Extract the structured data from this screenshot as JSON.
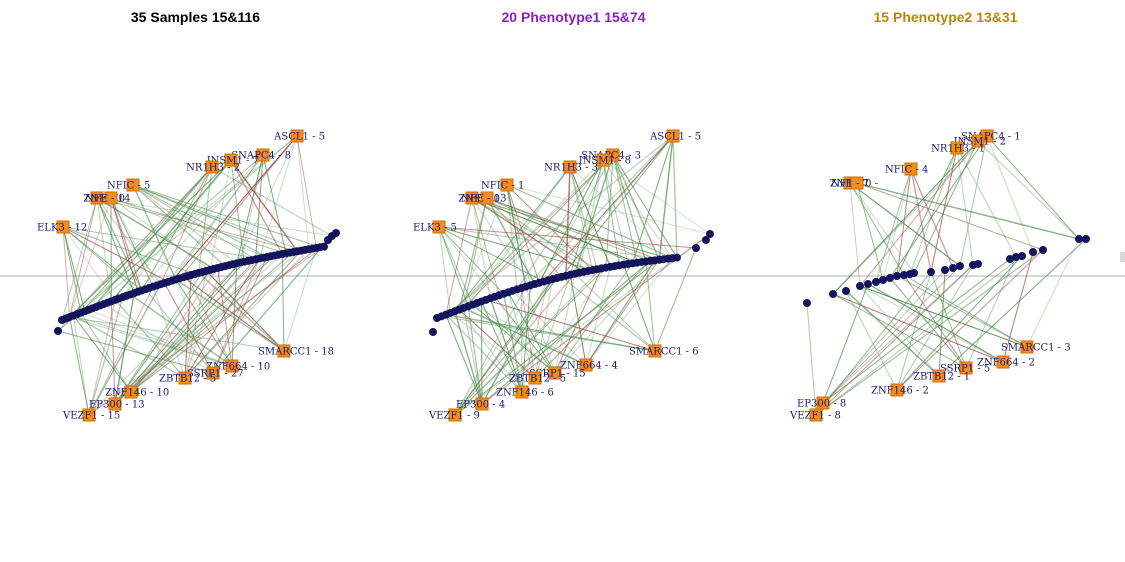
{
  "colors": {
    "title_total": "#000000",
    "title_pheno1": "#8e1ec4",
    "title_pheno2": "#b8860b",
    "node_fill": "#f28c1e",
    "node_stroke": "#d46e00",
    "dot_fill": "#14145c",
    "edge_green": "#4f8f4f",
    "edge_red": "#a04848",
    "baseline": "#b0b0b0"
  },
  "panels": [
    {
      "title": "35 Samples 15&116",
      "title_color": "#000000",
      "nodes": [
        {
          "id": "ASCL1",
          "label": "ASCL1 - 5",
          "anchor": "end"
        },
        {
          "id": "SNAPC4",
          "label": "SNAPC4 - 8",
          "anchor": "end"
        },
        {
          "id": "INSM1",
          "label": "INSM1 - 7",
          "anchor": "end"
        },
        {
          "id": "NR1H3",
          "label": "NR1H3 - 2",
          "anchor": "end"
        },
        {
          "id": "NFIC",
          "label": "NFIC - 5",
          "anchor": "start"
        },
        {
          "id": "ZNF770",
          "label": "ZNF770",
          "anchor": "end"
        },
        {
          "id": "NFE",
          "label": "NFE - 14",
          "anchor": "start"
        },
        {
          "id": "ELK3",
          "label": "ELK3 - 12",
          "anchor": "start"
        },
        {
          "id": "SMARCC1",
          "label": "SMARCC1 - 18",
          "anchor": "start"
        },
        {
          "id": "ZNF664",
          "label": "ZNF664 - 10",
          "anchor": "start"
        },
        {
          "id": "SSRP1",
          "label": "SSRP1 - 27",
          "anchor": "start"
        },
        {
          "id": "ZBTB12",
          "label": "ZBTB12 - 5",
          "anchor": "start"
        },
        {
          "id": "ZNF146",
          "label": "ZNF146 - 10",
          "anchor": "start"
        },
        {
          "id": "EP300",
          "label": "EP300 - 13",
          "anchor": "start"
        },
        {
          "id": "VEZF1",
          "label": "VEZF1 - 15",
          "anchor": "start"
        }
      ]
    },
    {
      "title": "20 Phenotype1 15&74",
      "title_color": "#8e1ec4",
      "nodes": [
        {
          "id": "ASCL1",
          "label": "ASCL1 - 5",
          "anchor": "end"
        },
        {
          "id": "SNAPC4",
          "label": "SNAPC4 - 3",
          "anchor": "end"
        },
        {
          "id": "INSM1",
          "label": "INSM1 - 8",
          "anchor": "end"
        },
        {
          "id": "NR1H3",
          "label": "NR1H3 - 3",
          "anchor": "end"
        },
        {
          "id": "NFIC",
          "label": "NFIC - 1",
          "anchor": "start"
        },
        {
          "id": "ZNF770",
          "label": "ZNF770",
          "anchor": "end"
        },
        {
          "id": "NFE",
          "label": "NFE - 13",
          "anchor": "start"
        },
        {
          "id": "ELK3",
          "label": "ELK3 - 5",
          "anchor": "start"
        },
        {
          "id": "SMARCC1",
          "label": "SMARCC1 - 6",
          "anchor": "start"
        },
        {
          "id": "ZNF664",
          "label": "ZNF664 - 4",
          "anchor": "start"
        },
        {
          "id": "SSRP1",
          "label": "SSRP1 - 15",
          "anchor": "start"
        },
        {
          "id": "ZBTB12",
          "label": "ZBTB12 - 5",
          "anchor": "start"
        },
        {
          "id": "ZNF146",
          "label": "ZNF146 - 6",
          "anchor": "start"
        },
        {
          "id": "EP300",
          "label": "EP300 - 4",
          "anchor": "start"
        },
        {
          "id": "VEZF1",
          "label": "VEZF1 - 9",
          "anchor": "start"
        }
      ]
    },
    {
      "title": "15 Phenotype2 13&31",
      "title_color": "#b8860b",
      "nodes": [
        {
          "id": "SNAPC4",
          "label": "SNAPC4 - 1",
          "anchor": "start"
        },
        {
          "id": "INSM1",
          "label": "INSM1 - 2",
          "anchor": "end"
        },
        {
          "id": "NR1H3",
          "label": "NR1H3 - 1",
          "anchor": "end"
        },
        {
          "id": "NFIC",
          "label": "NFIC - 4",
          "anchor": "start"
        },
        {
          "id": "ZNF770",
          "label": "ZNF770 -",
          "anchor": "end"
        },
        {
          "id": "NFE",
          "label": "NF1 - 7",
          "anchor": "start"
        },
        {
          "id": "SMARCC1",
          "label": "SMARCC1 - 3",
          "anchor": "start"
        },
        {
          "id": "ZNF664",
          "label": "ZNF664 - 2",
          "anchor": "start"
        },
        {
          "id": "SSRP1",
          "label": "SSRP1 - 5",
          "anchor": "start"
        },
        {
          "id": "ZBTB12",
          "label": "ZBTB12 - 1",
          "anchor": "start"
        },
        {
          "id": "ZNF146",
          "label": "ZNF146 - 2",
          "anchor": "start"
        },
        {
          "id": "EP300",
          "label": "EP300 - 8",
          "anchor": "start"
        },
        {
          "id": "VEZF1",
          "label": "VEZF1 - 8",
          "anchor": "start"
        }
      ]
    }
  ]
}
